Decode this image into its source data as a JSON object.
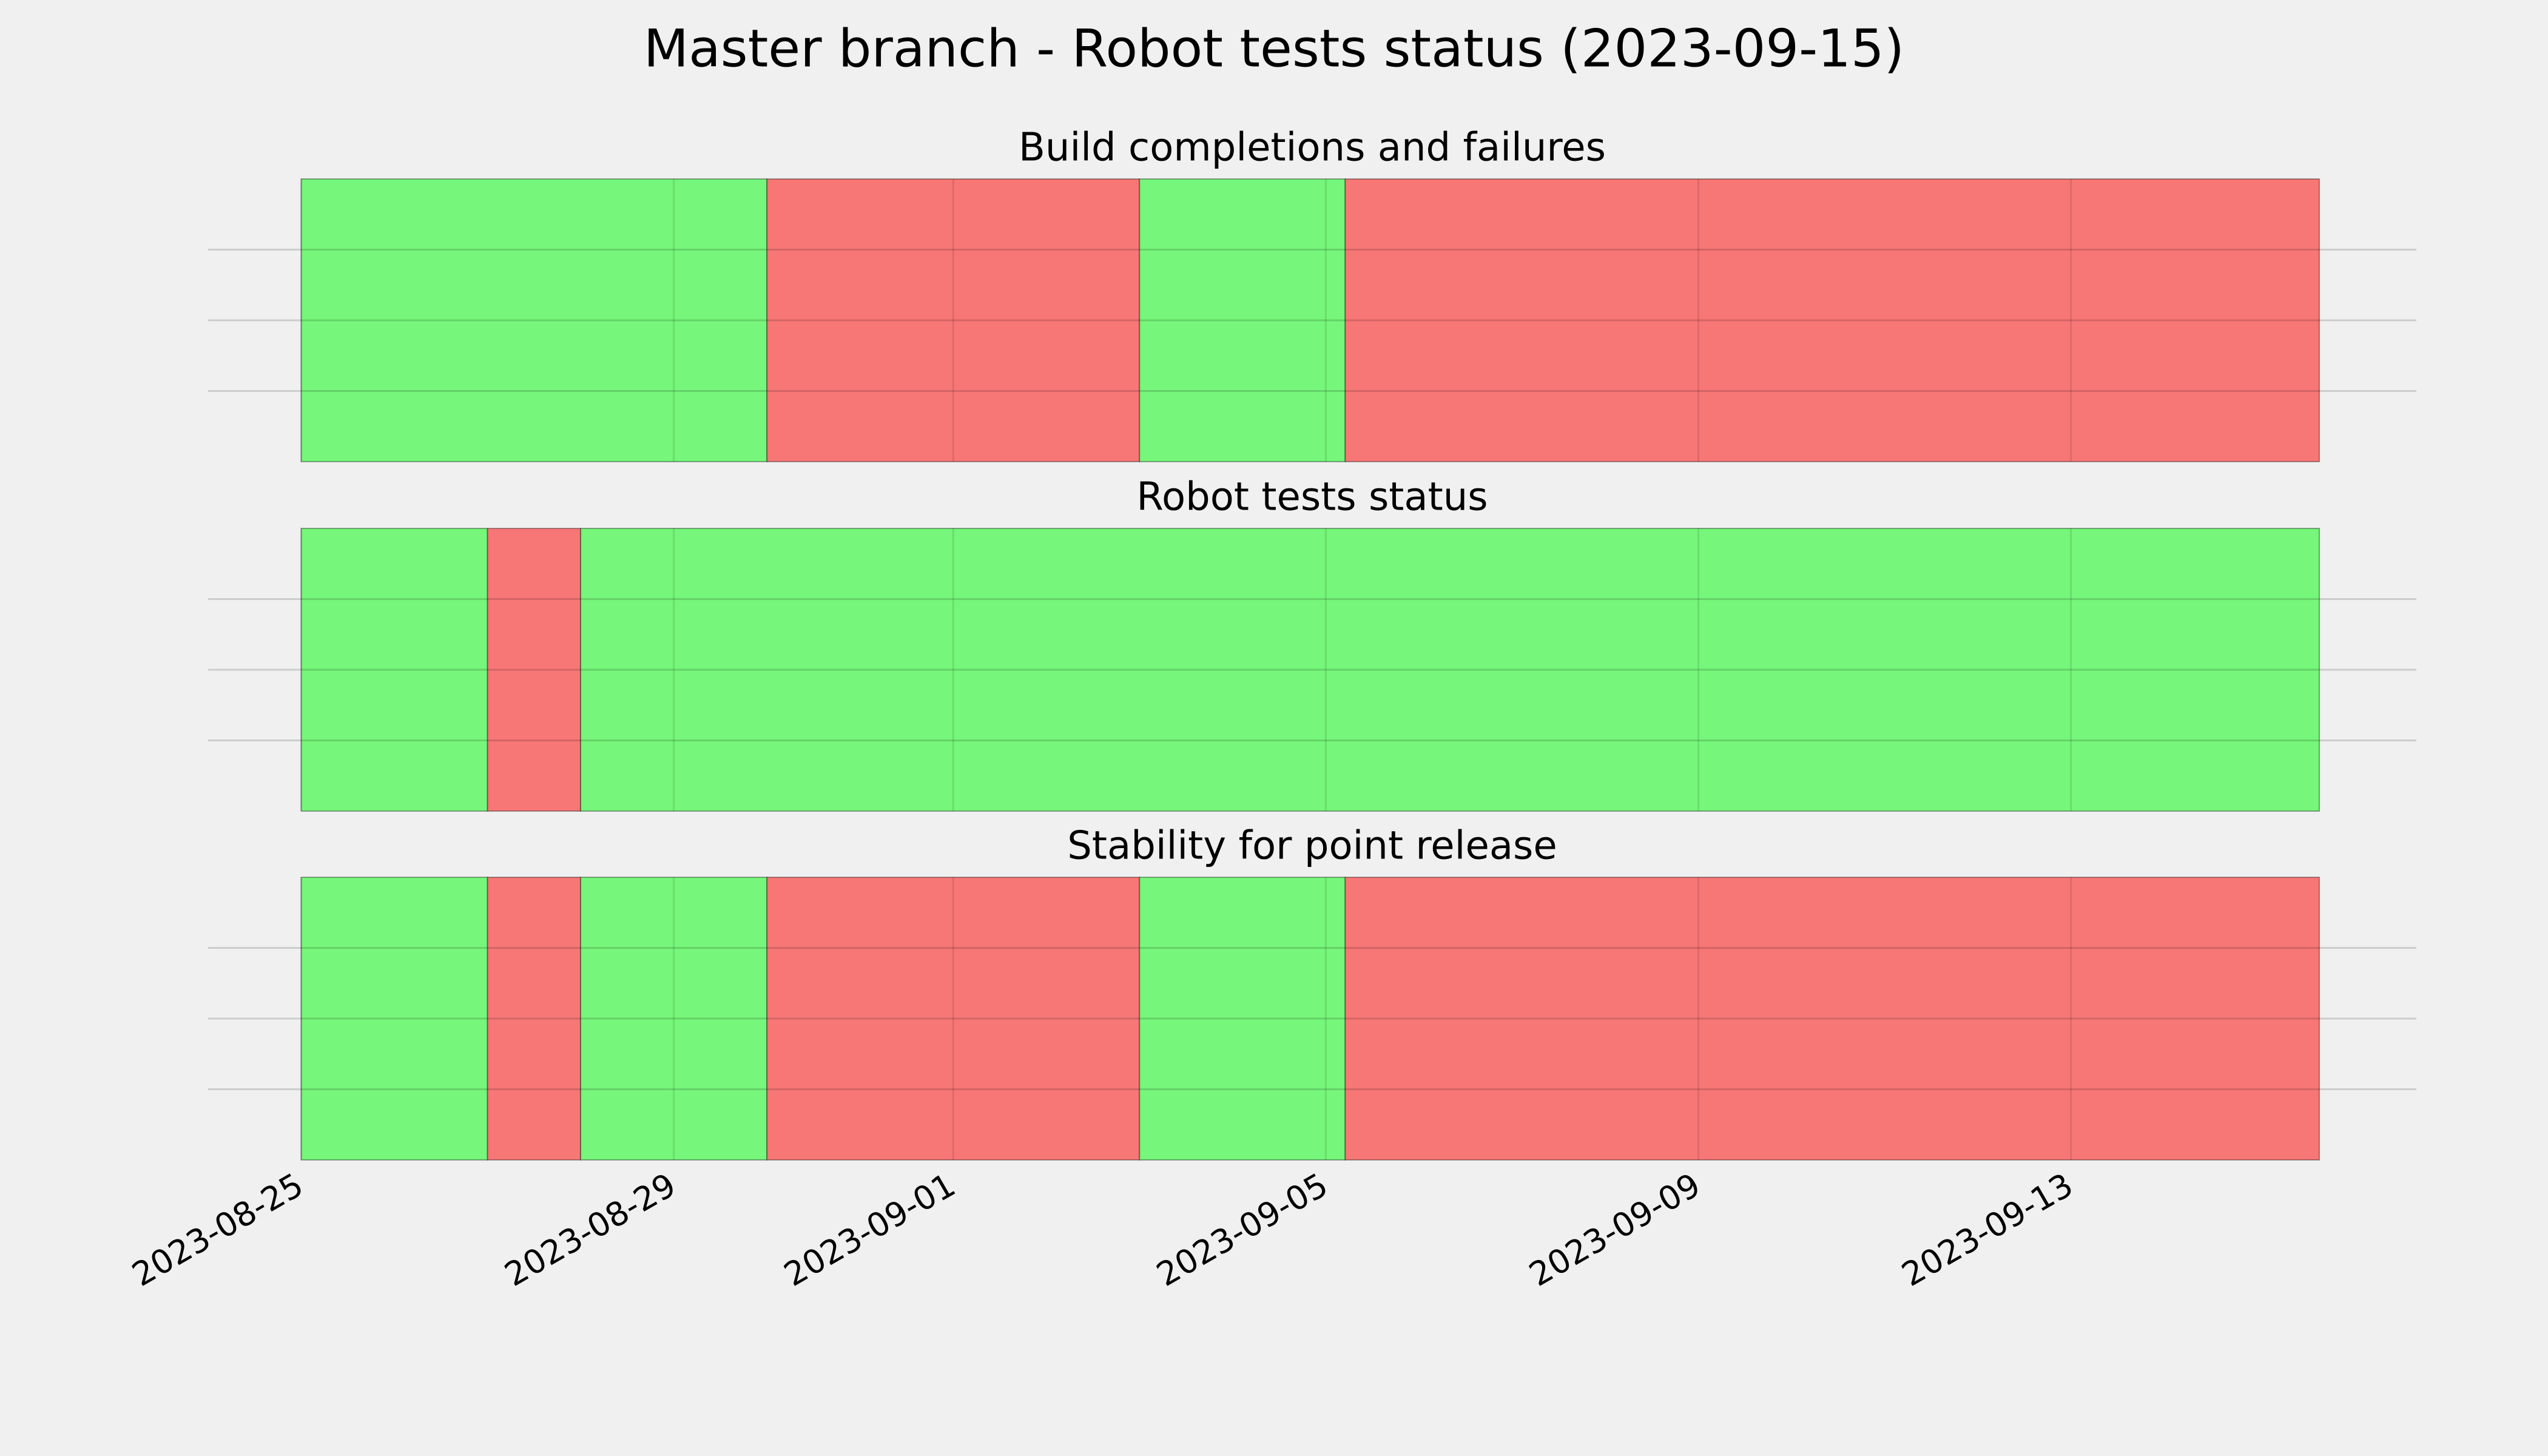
{
  "chart_data": {
    "type": "timeline",
    "title": "Master branch - Robot tests status (2023-09-15)",
    "xlim": [
      "2023-08-24",
      "2023-09-16T17:00"
    ],
    "xticks": [
      "2023-08-25",
      "2023-08-29",
      "2023-09-01",
      "2023-09-05",
      "2023-09-09",
      "2023-09-13"
    ],
    "ylim": [
      0,
      1
    ],
    "yticks": [
      0.25,
      0.5,
      0.75
    ],
    "grid": true,
    "panels": [
      {
        "title": "Build completions and failures",
        "spans": [
          {
            "start": "2023-08-25",
            "end": "2023-08-30",
            "color": "#76f67a"
          },
          {
            "start": "2023-08-30",
            "end": "2023-09-03",
            "color": "#f77776"
          },
          {
            "start": "2023-09-03",
            "end": "2023-09-05T05:00",
            "color": "#76f67a"
          },
          {
            "start": "2023-09-05T05:00",
            "end": "2023-09-15T16:00",
            "color": "#f77776"
          }
        ]
      },
      {
        "title": "Robot tests status",
        "spans": [
          {
            "start": "2023-08-25",
            "end": "2023-08-27",
            "color": "#76f67a"
          },
          {
            "start": "2023-08-27",
            "end": "2023-08-28",
            "color": "#f77776"
          },
          {
            "start": "2023-08-28",
            "end": "2023-09-15T16:00",
            "color": "#76f67a"
          }
        ]
      },
      {
        "title": "Stability for point release",
        "spans": [
          {
            "start": "2023-08-25",
            "end": "2023-08-27",
            "color": "#76f67a"
          },
          {
            "start": "2023-08-27",
            "end": "2023-08-28",
            "color": "#f77776"
          },
          {
            "start": "2023-08-28",
            "end": "2023-08-30",
            "color": "#76f67a"
          },
          {
            "start": "2023-08-30",
            "end": "2023-09-03",
            "color": "#f77776"
          },
          {
            "start": "2023-09-03",
            "end": "2023-09-05T05:00",
            "color": "#76f67a"
          },
          {
            "start": "2023-09-05T05:00",
            "end": "2023-09-15T16:00",
            "color": "#f77776"
          }
        ]
      }
    ]
  }
}
